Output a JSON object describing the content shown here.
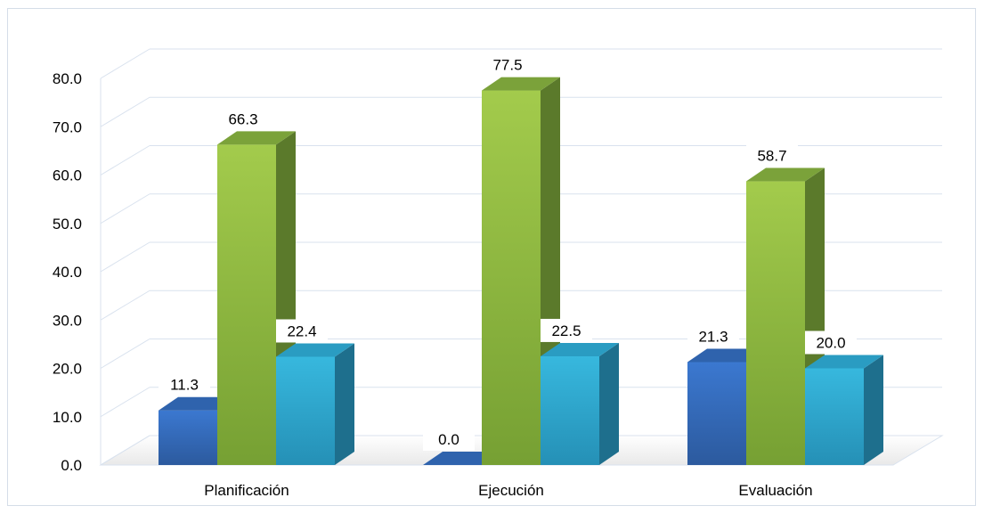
{
  "chart_data": {
    "type": "bar",
    "title": "",
    "xlabel": "",
    "ylabel": "",
    "categories": [
      "Planificación",
      "Ejecución",
      "Evaluación"
    ],
    "series": [
      {
        "values": [
          11.3,
          0.0,
          21.3
        ],
        "color": "#3a6fbe"
      },
      {
        "values": [
          66.3,
          77.5,
          58.7
        ],
        "color": "#8cb63c"
      },
      {
        "values": [
          22.4,
          22.5,
          20.0
        ],
        "color": "#2fa9d1"
      }
    ],
    "ylim": [
      0,
      80
    ],
    "yticks": [
      "0.0",
      "10.0",
      "20.0",
      "30.0",
      "40.0",
      "50.0",
      "60.0",
      "70.0",
      "80.0"
    ],
    "value_labels": [
      [
        "11.3",
        "0.0",
        "21.3"
      ],
      [
        "66.3",
        "77.5",
        "58.7"
      ],
      [
        "22.4",
        "22.5",
        "20.0"
      ]
    ],
    "grid": true,
    "legend": "none",
    "style": "3d"
  }
}
